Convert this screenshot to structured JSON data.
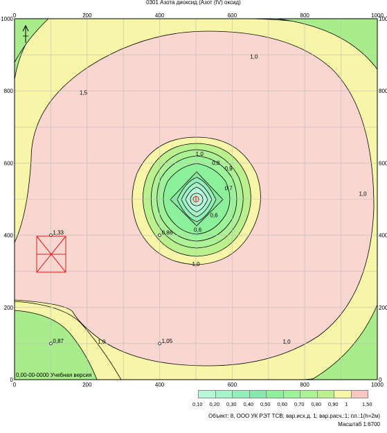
{
  "title": "0301 Азота диоксид (Азот (IV) оксид)",
  "axis": {
    "x_min": 0,
    "x_max": 1000,
    "y_min": 0,
    "y_max": 1000,
    "x_ticks": [
      "0",
      "200",
      "400",
      "600",
      "800",
      "1000"
    ],
    "y_ticks": [
      "0",
      "200",
      "400",
      "600",
      "800",
      "1000"
    ],
    "grid_step": 100,
    "grid": true
  },
  "watermark": "0,00-00-0000 Учебная версия",
  "contour_labels": [
    {
      "text": "1,0",
      "x": 660,
      "y": 890
    },
    {
      "text": "1,5",
      "x": 190,
      "y": 790
    },
    {
      "text": "1,0",
      "x": 960,
      "y": 510
    },
    {
      "text": "1,0",
      "x": 510,
      "y": 620
    },
    {
      "text": "0,8",
      "x": 555,
      "y": 595
    },
    {
      "text": "0,9",
      "x": 590,
      "y": 580
    },
    {
      "text": "0,7",
      "x": 590,
      "y": 525
    },
    {
      "text": "0,6",
      "x": 550,
      "y": 450
    },
    {
      "text": "0,6",
      "x": 505,
      "y": 410
    },
    {
      "text": "1,0",
      "x": 500,
      "y": 315
    },
    {
      "text": "1,0",
      "x": 750,
      "y": 100
    },
    {
      "text": "1,0",
      "x": 240,
      "y": 100
    }
  ],
  "points": [
    {
      "label": "1,33",
      "x": 100,
      "y": 400
    },
    {
      "label": "0,86",
      "x": 400,
      "y": 400
    },
    {
      "label": "0,87",
      "x": 100,
      "y": 100
    },
    {
      "label": "1,05",
      "x": 400,
      "y": 100
    }
  ],
  "source_marker": {
    "x": 500,
    "y": 500
  },
  "legend": {
    "labels": [
      "0,10",
      "0,20",
      "0,30",
      "0,40",
      "0,50",
      "0,60",
      "0,70",
      "0,80",
      "0,90",
      "1",
      "1,50"
    ],
    "colors": [
      "#b8f7d8",
      "#a6f4ca",
      "#93efba",
      "#82eaab",
      "#8df09b",
      "#9ef39a",
      "#adf296",
      "#bbf08e",
      "#f7f6a8",
      "#f8c8c0"
    ]
  },
  "footer": {
    "object": "Объект: 8, ООО УК РЭТ ТСВ; вар.исх.д. 1; вар.расч.:1; пл.:1(h=2м)",
    "scale": "Масштаб 1:6700"
  },
  "colors": {
    "pink": "#f9d6cf",
    "yellow": "#f7f6a8",
    "green": "#a8ec8c",
    "green_inner": "#86ea9a",
    "cyan": "#9cf2c6",
    "grid": "#bdbdbd",
    "red": "#e31a1c"
  }
}
